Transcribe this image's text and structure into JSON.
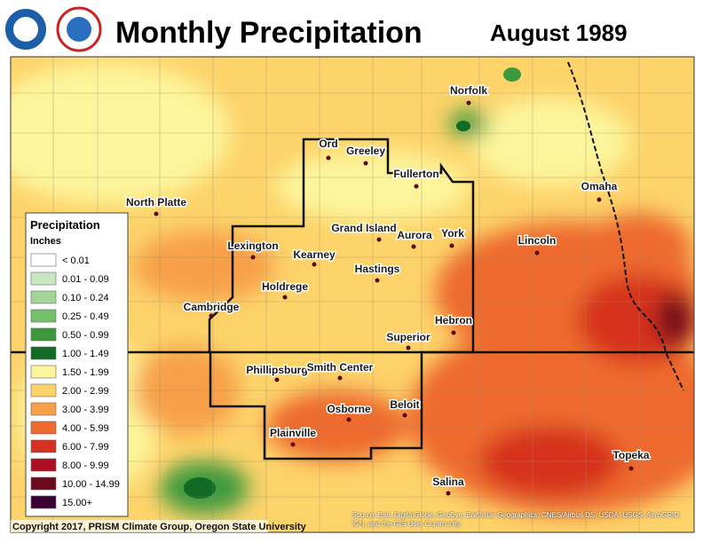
{
  "header": {
    "title": "Monthly Precipitation",
    "date": "August 1989"
  },
  "legend": {
    "title": "Precipitation",
    "unit": "Inches",
    "items": [
      {
        "label": "< 0.01",
        "color": "#ffffff"
      },
      {
        "label": "0.01 - 0.09",
        "color": "#c9e8c1"
      },
      {
        "label": "0.10 - 0.24",
        "color": "#a2d596"
      },
      {
        "label": "0.25 - 0.49",
        "color": "#76bf6b"
      },
      {
        "label": "0.50 - 0.99",
        "color": "#3d9a3c"
      },
      {
        "label": "1.00 - 1.49",
        "color": "#116b24"
      },
      {
        "label": "1.50 - 1.99",
        "color": "#fdf59b"
      },
      {
        "label": "2.00 - 2.99",
        "color": "#fdd36a"
      },
      {
        "label": "3.00 - 3.99",
        "color": "#f7a04a"
      },
      {
        "label": "4.00 - 5.99",
        "color": "#ee6a2d"
      },
      {
        "label": "6.00 - 7.99",
        "color": "#d6301f"
      },
      {
        "label": "8.00 - 9.99",
        "color": "#ad0f22"
      },
      {
        "label": "10.00 - 14.99",
        "color": "#6b0b1f"
      },
      {
        "label": "15.00+",
        "color": "#3a0035"
      }
    ]
  },
  "cities": [
    "Norfolk",
    "Ord",
    "Greeley",
    "Fullerton",
    "North Platte",
    "Omaha",
    "Grand Island",
    "Aurora",
    "York",
    "Lincoln",
    "Lexington",
    "Kearney",
    "Hastings",
    "Holdrege",
    "Cambridge",
    "Hebron",
    "Superior",
    "Phillipsburg",
    "Smith Center",
    "Osborne",
    "Beloit",
    "Plainville",
    "Topeka",
    "Salina"
  ],
  "footer": {
    "copyright": "Copyright 2017, PRISM Climate Group, Oregon State University",
    "source": "Source: Esri, DigitalGlobe, GeoEye, Earthstar Geographics, CNES/Airbus DS, USDA, USGS, AeroGRID, IGN, and the GIS User Community"
  }
}
